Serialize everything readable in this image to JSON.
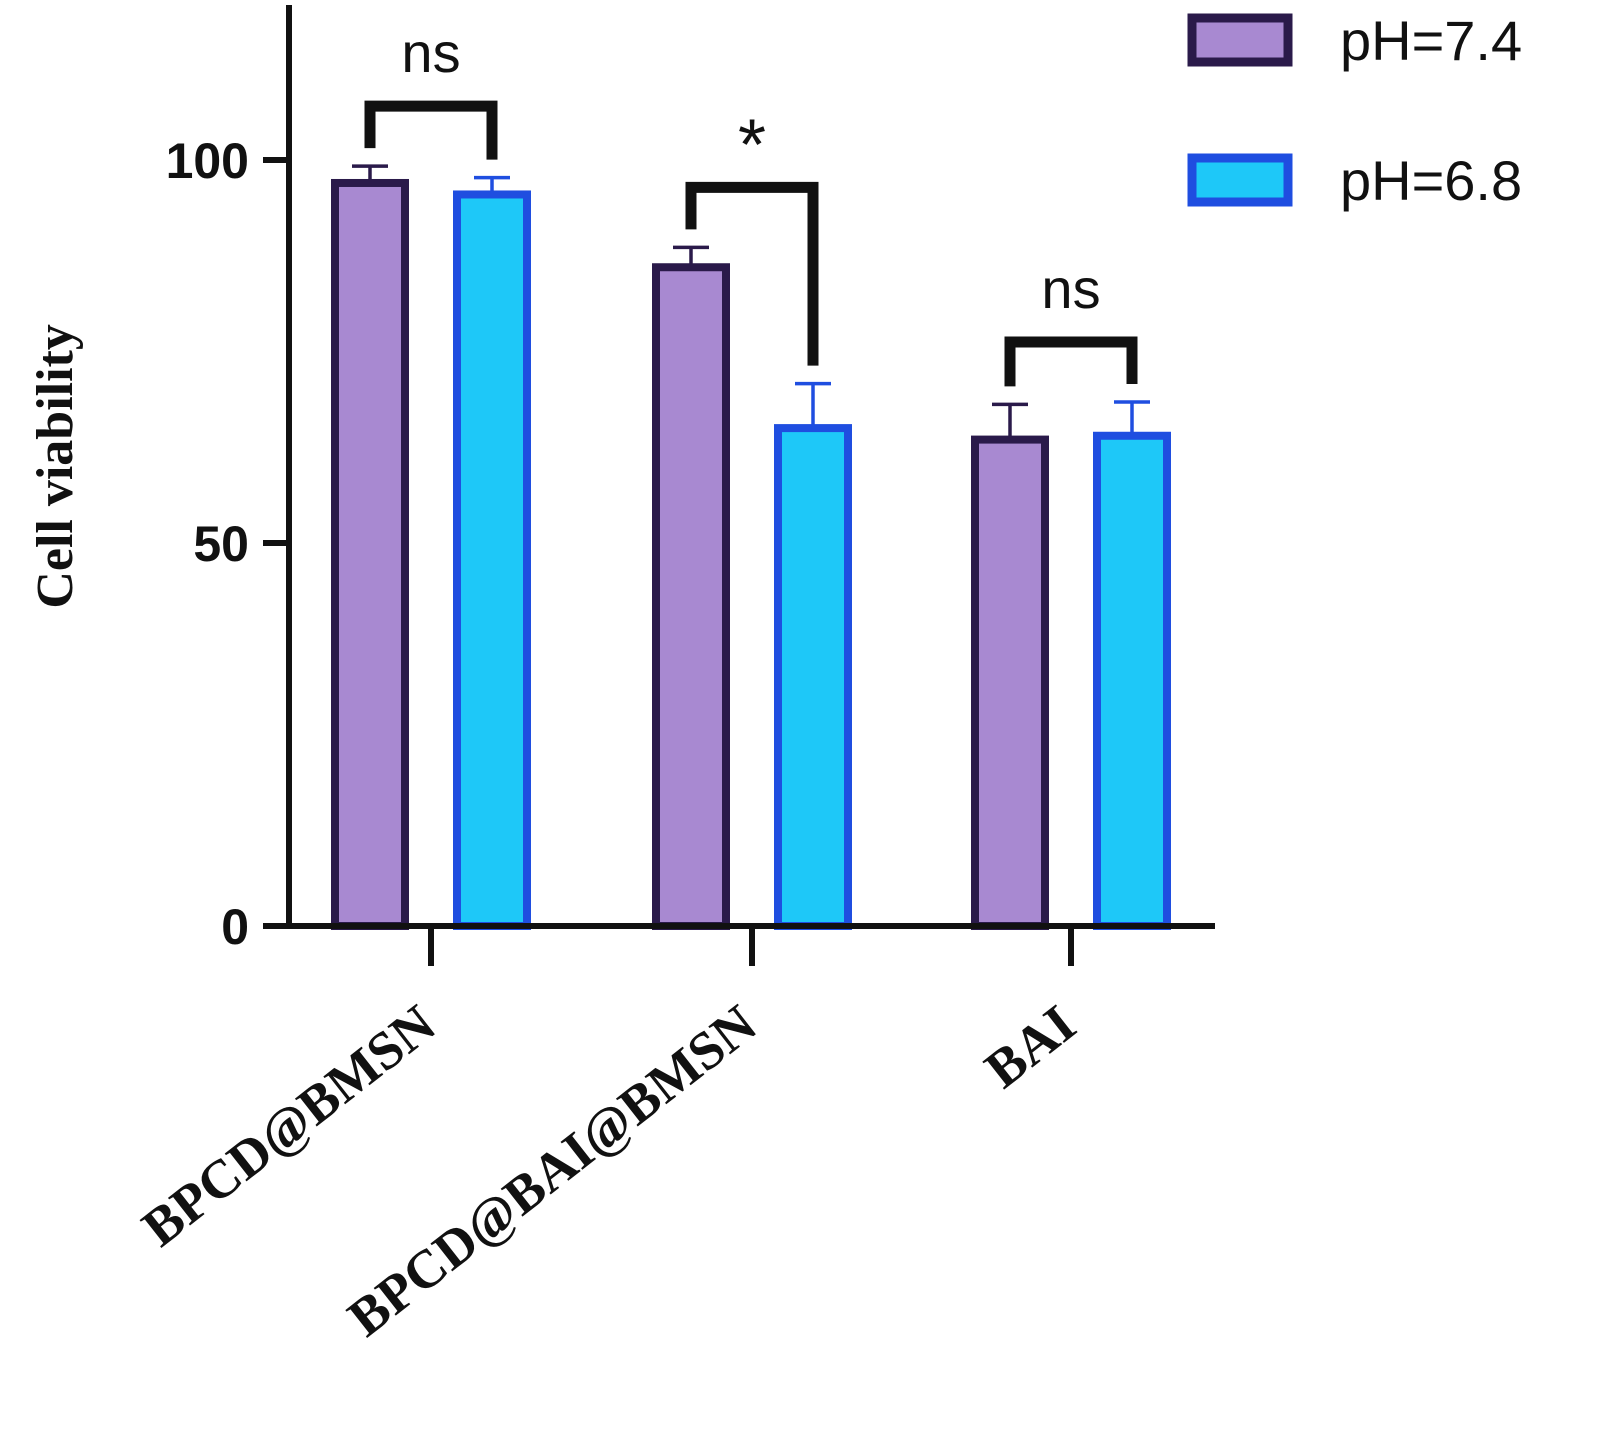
{
  "chart_data": {
    "type": "bar",
    "title": "",
    "xlabel": "",
    "ylabel": "Cell viability",
    "ylim": [
      0,
      120
    ],
    "yticks": [
      0,
      50,
      100
    ],
    "categories": [
      "BPCD@BMSN",
      "BPCD@BAI@BMSN",
      "BAI"
    ],
    "series": [
      {
        "name": "pH=7.4",
        "values": [
          97,
          86,
          63.5
        ],
        "errors": [
          2.2,
          2.6,
          4.6
        ],
        "fill": "#a889d1",
        "stroke": "#2a1a4a"
      },
      {
        "name": "pH=6.8",
        "values": [
          95.5,
          65,
          64
        ],
        "errors": [
          2.2,
          5.8,
          4.4
        ],
        "fill": "#1ec8f8",
        "stroke": "#1f4ee0"
      }
    ],
    "significance": [
      {
        "category": "BPCD@BMSN",
        "label": "ns"
      },
      {
        "category": "BPCD@BAI@BMSN",
        "label": "*"
      },
      {
        "category": "BAI",
        "label": "ns"
      }
    ],
    "grid": false,
    "legend_position": "top-right"
  }
}
